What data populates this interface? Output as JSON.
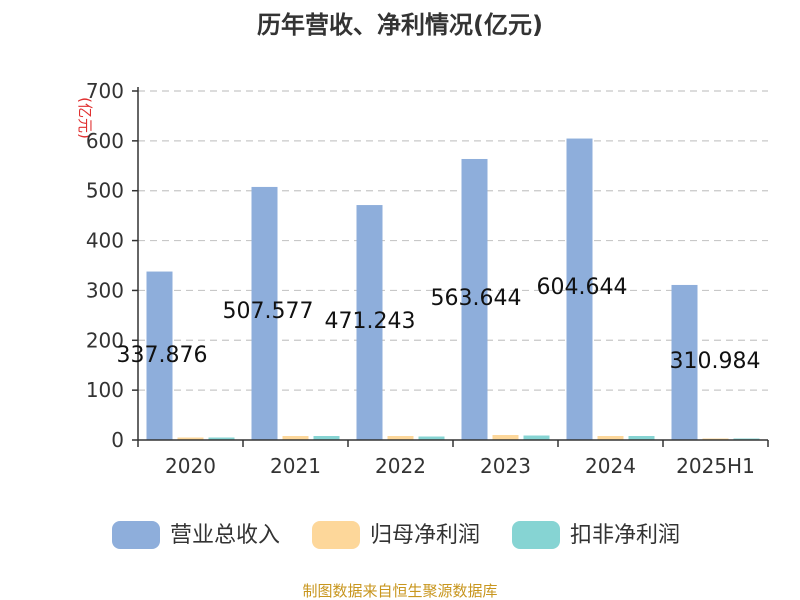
{
  "chart_data": {
    "type": "bar",
    "title": "历年营收、净利情况(亿元)",
    "ylabel": "(亿元)",
    "categories": [
      "2020",
      "2021",
      "2022",
      "2023",
      "2024",
      "2025H1"
    ],
    "series": [
      {
        "name": "营业总收入",
        "color": "#8eaedb",
        "values": [
          337.876,
          507.577,
          471.243,
          563.644,
          604.644,
          310.984
        ]
      },
      {
        "name": "归母净利润",
        "color": "#fdd79a",
        "values": [
          5.0,
          8.0,
          8.0,
          10.0,
          8.0,
          3.0
        ]
      },
      {
        "name": "扣非净利润",
        "color": "#86d4d3",
        "values": [
          5.0,
          8.0,
          7.0,
          9.0,
          8.0,
          3.0
        ]
      }
    ],
    "data_labels": [
      "337.876",
      "507.577",
      "471.243",
      "563.644",
      "604.644",
      "310.984"
    ],
    "yticks": [
      "0",
      "100",
      "200",
      "300",
      "400",
      "500",
      "600",
      "700"
    ],
    "ylim": [
      0,
      700
    ],
    "grid": "horizontal dashed",
    "legend": "bottom"
  },
  "source": "制图数据来自恒生聚源数据库"
}
